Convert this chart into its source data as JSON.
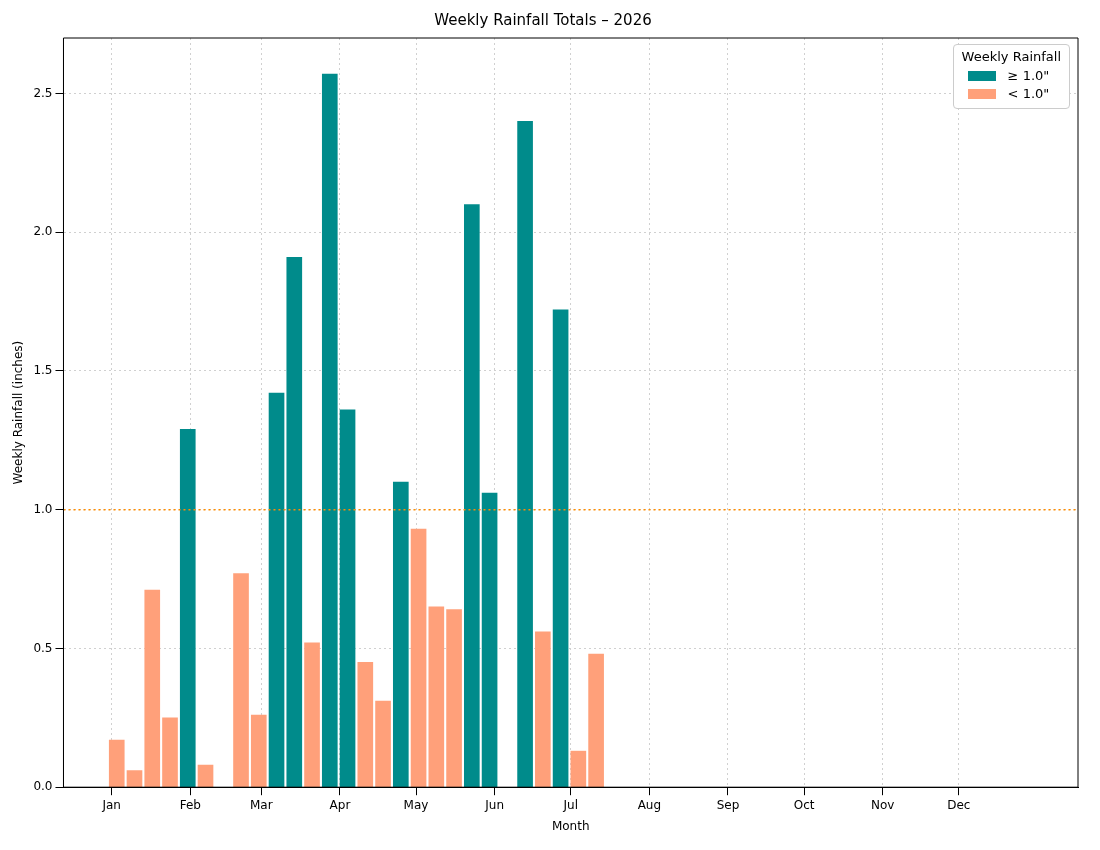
{
  "chart_data": {
    "type": "bar",
    "title": "Weekly Rainfall Totals – 2026",
    "xlabel": "Month",
    "ylabel": "Weekly Rainfall (inches)",
    "legend_title": "Weekly Rainfall",
    "x": [
      "2026-01-03",
      "2026-01-10",
      "2026-01-17",
      "2026-01-24",
      "2026-01-31",
      "2026-02-07",
      "2026-02-14",
      "2026-02-21",
      "2026-02-28",
      "2026-03-07",
      "2026-03-14",
      "2026-03-21",
      "2026-03-28",
      "2026-04-04",
      "2026-04-11",
      "2026-04-18",
      "2026-04-25",
      "2026-05-02",
      "2026-05-09",
      "2026-05-16",
      "2026-05-23",
      "2026-05-30",
      "2026-06-06",
      "2026-06-13",
      "2026-06-20",
      "2026-06-27",
      "2026-07-04",
      "2026-07-11"
    ],
    "series": [
      {
        "name": "≥ 1.0\"",
        "color": "#008b8b",
        "values": [
          null,
          null,
          null,
          null,
          1.29,
          null,
          null,
          null,
          null,
          1.42,
          1.91,
          null,
          2.57,
          1.36,
          null,
          null,
          1.1,
          null,
          null,
          null,
          2.1,
          1.06,
          null,
          2.4,
          null,
          1.72,
          null,
          null
        ]
      },
      {
        "name": "< 1.0\"",
        "color": "#ffa07a",
        "values": [
          0.17,
          0.06,
          0.71,
          0.25,
          null,
          0.08,
          null,
          0.77,
          0.26,
          null,
          null,
          0.52,
          null,
          null,
          0.45,
          0.31,
          null,
          0.93,
          0.65,
          0.64,
          null,
          null,
          null,
          null,
          0.56,
          null,
          0.13,
          0.48
        ]
      }
    ],
    "xlim": [
      "2025-12-13",
      "2027-01-17"
    ],
    "xticks": [
      {
        "value": "2026-01-01",
        "label": "Jan"
      },
      {
        "value": "2026-02-01",
        "label": "Feb"
      },
      {
        "value": "2026-03-01",
        "label": "Mar"
      },
      {
        "value": "2026-04-01",
        "label": "Apr"
      },
      {
        "value": "2026-05-01",
        "label": "May"
      },
      {
        "value": "2026-06-01",
        "label": "Jun"
      },
      {
        "value": "2026-07-01",
        "label": "Jul"
      },
      {
        "value": "2026-08-01",
        "label": "Aug"
      },
      {
        "value": "2026-09-01",
        "label": "Sep"
      },
      {
        "value": "2026-10-01",
        "label": "Oct"
      },
      {
        "value": "2026-11-01",
        "label": "Nov"
      },
      {
        "value": "2026-12-01",
        "label": "Dec"
      }
    ],
    "ylim": [
      0,
      2.7
    ],
    "yticks": [
      {
        "value": 0,
        "label": "0.0"
      },
      0.5,
      {
        "value": 1,
        "label": "1.0"
      },
      1.5,
      {
        "value": 2,
        "label": "2.0"
      },
      2.5
    ],
    "ref_lines": [
      {
        "axis": "y",
        "value": 1.0,
        "color": "#ff8c00",
        "line_style": "dotted"
      }
    ],
    "grid": true,
    "legend": "top right"
  }
}
